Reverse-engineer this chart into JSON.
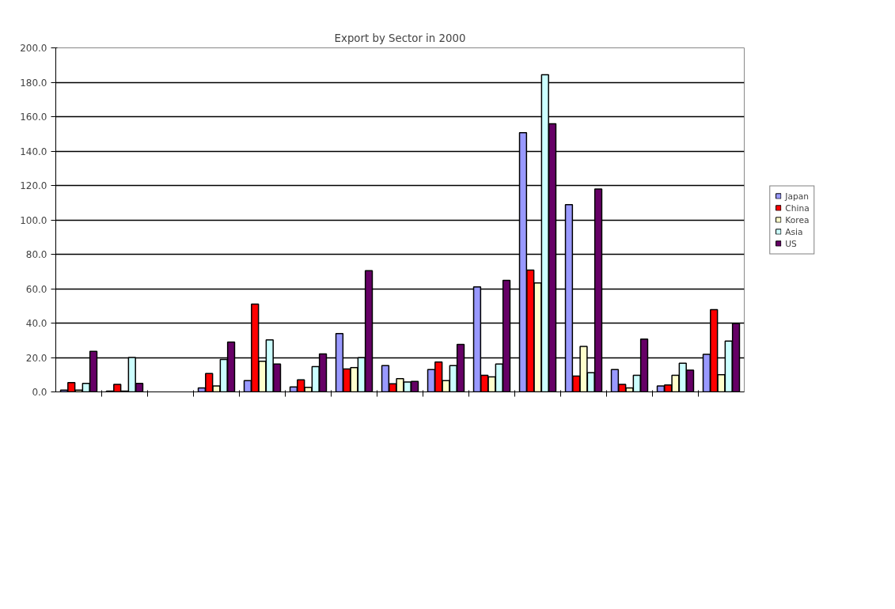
{
  "chart_data": {
    "type": "bar",
    "title": "Export by Sector in 2000",
    "categories": [
      null,
      null,
      null,
      null,
      null,
      null,
      null,
      null,
      null,
      null,
      null,
      null,
      null,
      null,
      null
    ],
    "series": [
      {
        "name": "Japan",
        "color": "#9999ff",
        "values": [
          1.0,
          0.5,
          null,
          2.3,
          6.6,
          2.9,
          33.9,
          15.3,
          13.0,
          61.0,
          150.7,
          108.8,
          13.0,
          3.4,
          21.8
        ]
      },
      {
        "name": "China",
        "color": "#ff0000",
        "values": [
          5.4,
          4.4,
          null,
          10.7,
          51.0,
          7.0,
          13.3,
          4.7,
          17.3,
          9.7,
          70.8,
          9.2,
          4.4,
          4.0,
          47.8
        ]
      },
      {
        "name": "Korea",
        "color": "#ffffcc",
        "values": [
          1.0,
          0.5,
          null,
          3.4,
          17.8,
          2.6,
          14.1,
          7.7,
          6.6,
          8.7,
          63.3,
          26.4,
          2.3,
          9.7,
          10.0
        ]
      },
      {
        "name": "Asia",
        "color": "#ccffff",
        "values": [
          4.9,
          20.0,
          null,
          18.8,
          30.2,
          14.7,
          19.9,
          5.8,
          15.3,
          16.2,
          184.4,
          11.2,
          9.7,
          16.7,
          29.5
        ]
      },
      {
        "name": "US",
        "color": "#660066",
        "values": [
          23.6,
          5.0,
          null,
          29.0,
          16.2,
          22.1,
          70.5,
          6.1,
          27.6,
          64.8,
          155.9,
          117.9,
          30.7,
          12.6,
          39.8
        ]
      }
    ],
    "ylim": [
      0,
      200
    ],
    "yticks": [
      {
        "value": 0,
        "label": "0.0"
      },
      {
        "value": 20,
        "label": "20.0"
      },
      {
        "value": 40,
        "label": "40.0"
      },
      {
        "value": 60,
        "label": "60.0"
      },
      {
        "value": 80,
        "label": "80.0"
      },
      {
        "value": 100,
        "label": "100.0"
      },
      {
        "value": 120,
        "label": "120.0"
      },
      {
        "value": 140,
        "label": "140.0"
      },
      {
        "value": 160,
        "label": "160.0"
      },
      {
        "value": 180,
        "label": "180.0"
      },
      {
        "value": 200,
        "label": "200.0"
      }
    ],
    "grid": "y",
    "legend": "right"
  }
}
